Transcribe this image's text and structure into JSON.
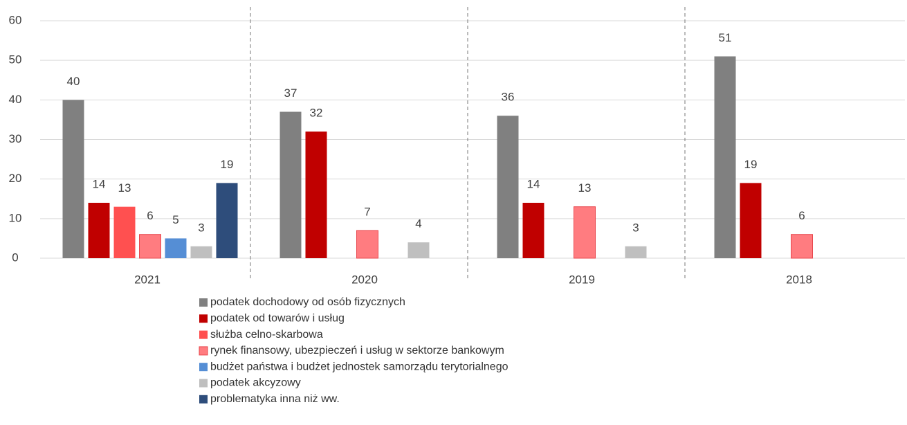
{
  "chart_data": {
    "type": "bar",
    "categories": [
      "2021",
      "2020",
      "2019",
      "2018"
    ],
    "series": [
      {
        "name": " podatek dochodowy od osób fizycznych",
        "color": "#808080",
        "values": [
          40,
          37,
          36,
          51
        ]
      },
      {
        "name": "podatek od towarów i usług",
        "color": "#c00000",
        "values": [
          14,
          32,
          14,
          19
        ]
      },
      {
        "name": "służba celno-skarbowa",
        "color": "#ff5050",
        "values": [
          13,
          null,
          null,
          null
        ]
      },
      {
        "name": "rynek finansowy, ubezpieczeń i usług w sektorze bankowym",
        "color": "#ff7c80",
        "values": [
          6,
          7,
          13,
          6
        ]
      },
      {
        "name": "budżet państwa i budżet jednostek samorządu terytorialnego",
        "color": "#558ed5",
        "values": [
          5,
          null,
          null,
          null
        ]
      },
      {
        "name": "podatek akcyzowy",
        "color": "#bfbfbf",
        "values": [
          3,
          4,
          3,
          null
        ]
      },
      {
        "name": "problematyka inna niż ww.",
        "color": "#2e4d7b",
        "values": [
          19,
          null,
          null,
          null
        ]
      }
    ],
    "ylim": [
      0,
      60
    ],
    "yticks": [
      0,
      10,
      20,
      30,
      40,
      50,
      60
    ],
    "grid": true
  }
}
